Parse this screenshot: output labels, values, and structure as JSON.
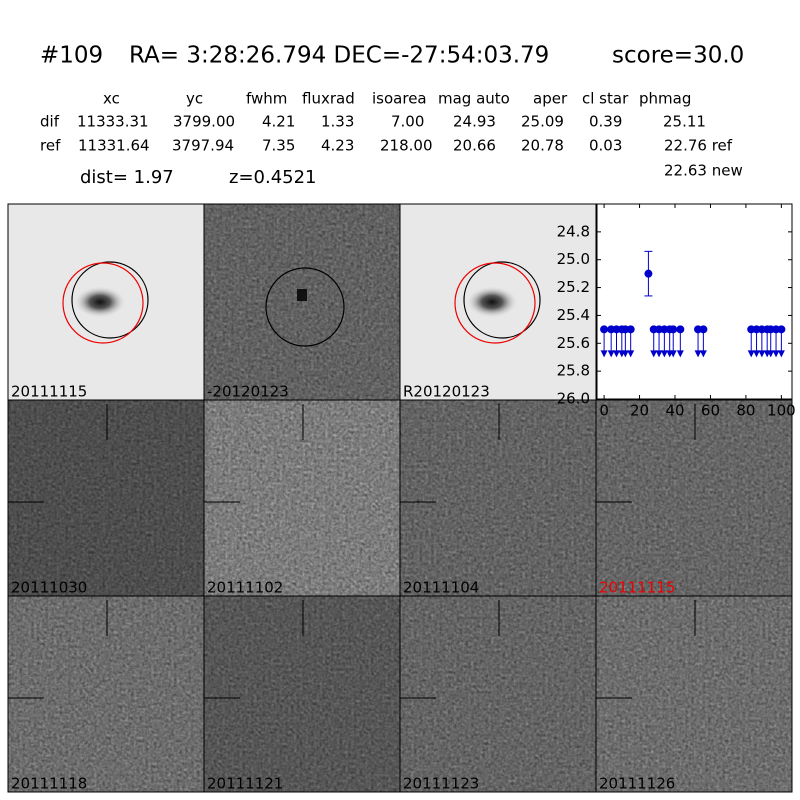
{
  "header": {
    "id": "#109",
    "coords": "RA= 3:28:26.794 DEC=-27:54:03.79",
    "score": "score=30.0"
  },
  "table": {
    "columns": [
      "xc",
      "yc",
      "fwhm",
      "fluxrad",
      "isoarea",
      "mag auto",
      "aper",
      "cl star",
      "phmag"
    ],
    "rows": [
      [
        "dif",
        "11333.31",
        "3799.00",
        "4.21",
        "1.33",
        "7.00",
        "24.93",
        "25.09",
        "0.39",
        "25.11"
      ],
      [
        "ref",
        "11331.64",
        "3797.94",
        "7.35",
        "4.23",
        "218.00",
        "20.66",
        "20.78",
        "0.03",
        "22.76 ref"
      ]
    ]
  },
  "dist": "dist=  1.97",
  "redshift": "z=0.4521",
  "phmag_new": "22.63 new",
  "stamps": [
    "20111115",
    "-20120123",
    "R20120123",
    "20111030",
    "20111102",
    "20111104",
    "20111115",
    "20111118",
    "20111121",
    "20111123",
    "20111126"
  ],
  "chart_data": {
    "type": "scatter",
    "color": "#0000cc",
    "xlim": [
      -4,
      106
    ],
    "xticks": [
      0,
      20,
      40,
      60,
      80,
      100
    ],
    "ylim": [
      24.6,
      26.0
    ],
    "inverted_y": true,
    "yticks": [
      {
        "value": 24.8,
        "label": "24.8"
      },
      {
        "value": 25.0,
        "label": "25.0"
      },
      {
        "value": 25.2,
        "label": "25.2"
      },
      {
        "value": 25.4,
        "label": "25.4"
      },
      {
        "value": 25.6,
        "label": "25.6"
      },
      {
        "value": 25.8,
        "label": "25.8"
      },
      {
        "value": 26.0,
        "label": "26.0"
      }
    ],
    "detections": {
      "x": [
        25
      ],
      "values": [
        25.1
      ],
      "errors": [
        0.16
      ]
    },
    "limits": {
      "x": [
        0,
        4,
        7,
        10,
        12,
        15,
        28,
        31,
        34,
        37,
        39,
        43,
        53,
        56,
        83,
        86,
        89,
        92,
        94,
        97,
        100
      ],
      "values": [
        25.5,
        25.5,
        25.5,
        25.5,
        25.5,
        25.5,
        25.5,
        25.5,
        25.5,
        25.5,
        25.5,
        25.5,
        25.5,
        25.5,
        25.5,
        25.5,
        25.5,
        25.5,
        25.5,
        25.5,
        25.5
      ]
    }
  }
}
